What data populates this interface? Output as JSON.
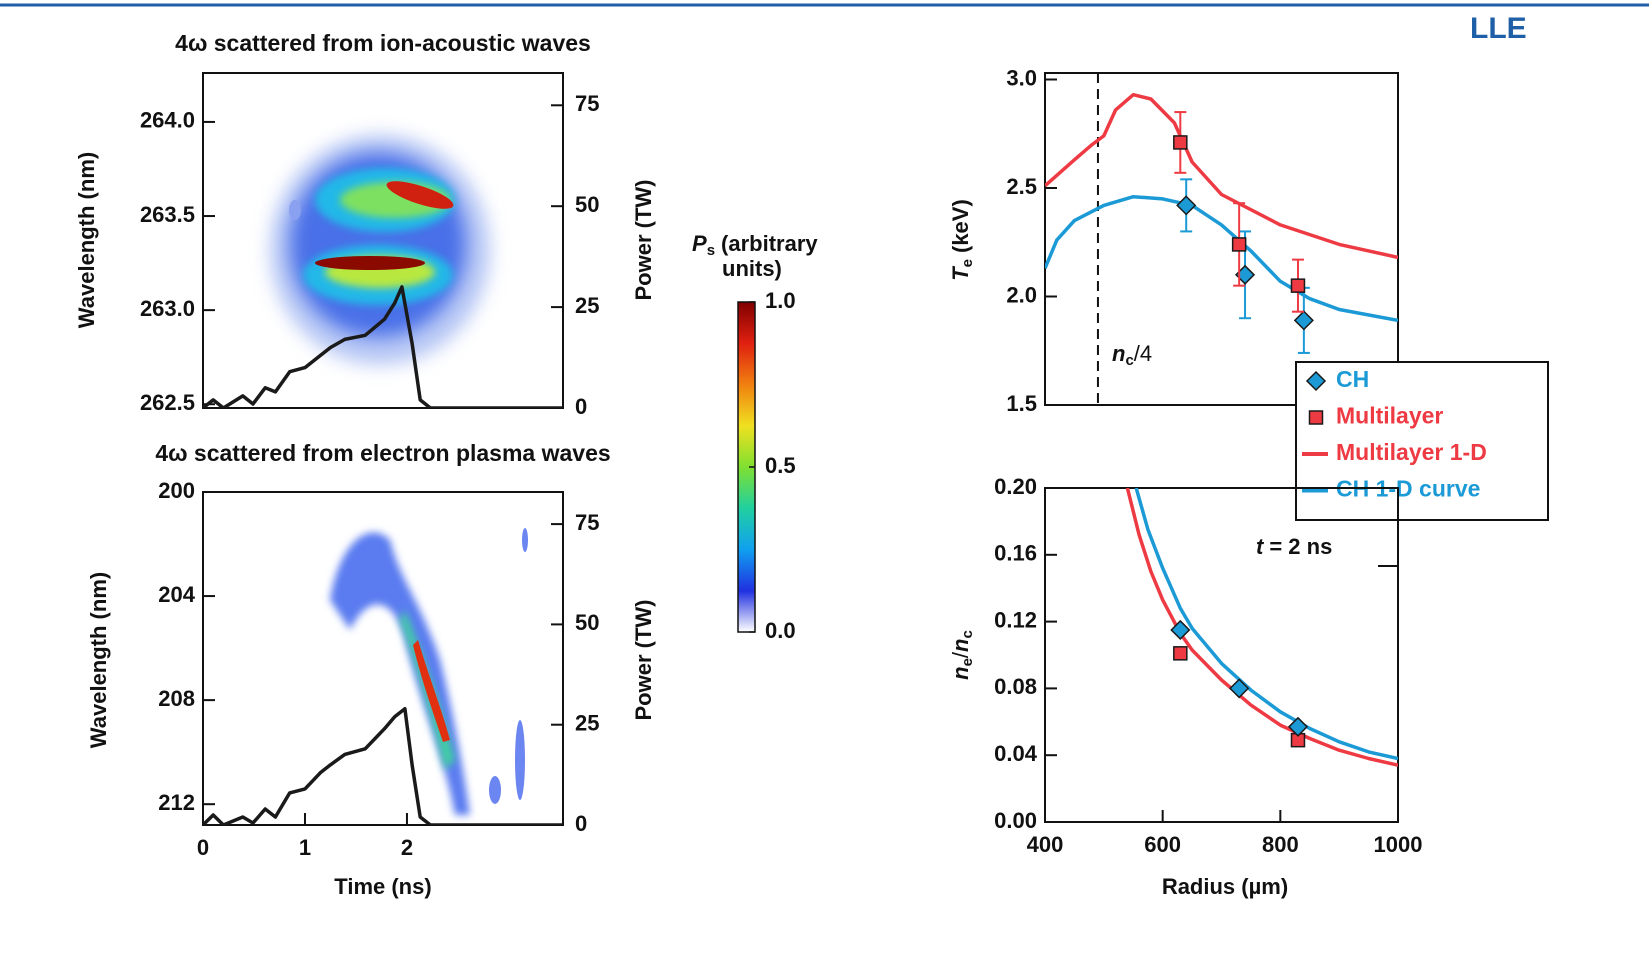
{
  "header": {
    "logo": "LLE"
  },
  "chart_data": [
    {
      "type": "heatmap",
      "title": "4ω scattered from ion-acoustic waves",
      "ylabel": "Wavelength (nm)",
      "y2label": "Power (TW)",
      "xlim": [
        0,
        3.53
      ],
      "ylim": [
        262.48,
        264.26
      ],
      "yticks": [
        {
          "value": 262.5,
          "label": "262.5"
        },
        {
          "value": 263,
          "label": "263.0"
        },
        {
          "value": 263.5,
          "label": "263.5"
        },
        {
          "value": 264,
          "label": "264.0"
        }
      ],
      "y2lim": [
        0,
        83
      ],
      "y2ticks": [
        0,
        25,
        50,
        75
      ],
      "series": [
        {
          "color": "#1a1a1a",
          "axis": "y2",
          "x": [
            0,
            0.1,
            0.2,
            0.39,
            0.49,
            0.61,
            0.71,
            0.85,
            1.0,
            1.15,
            1.25,
            1.39,
            1.59,
            1.78,
            1.88,
            1.95,
            2.05,
            2.13,
            2.23,
            3.53
          ],
          "values": [
            0,
            2,
            0,
            3,
            1,
            5,
            4,
            9,
            10,
            13,
            15,
            17,
            18,
            22,
            26,
            30,
            16,
            2,
            0,
            0
          ]
        }
      ]
    },
    {
      "type": "heatmap",
      "title": "4ω scattered from electron plasma waves",
      "ylabel": "Wavelength (nm)",
      "y2label": "Power (TW)",
      "xlabel": "Time (ns)",
      "xlim": [
        0,
        3.53
      ],
      "xticks": [
        0,
        1,
        2
      ],
      "ylim": [
        200,
        212.8
      ],
      "y_inverted": true,
      "yticks": [
        200,
        204,
        208,
        212
      ],
      "y2lim": [
        0,
        83
      ],
      "y2ticks": [
        0,
        25,
        50,
        75
      ],
      "series": [
        {
          "color": "#1a1a1a",
          "axis": "y2",
          "x": [
            0,
            0.1,
            0.2,
            0.39,
            0.49,
            0.61,
            0.71,
            0.85,
            1.0,
            1.15,
            1.25,
            1.39,
            1.59,
            1.78,
            1.88,
            1.98,
            2.05,
            2.13,
            2.23,
            3.53
          ],
          "values": [
            0,
            2.5,
            0,
            2,
            0.5,
            4,
            2,
            8,
            9,
            13,
            15,
            17.6,
            19,
            24,
            27,
            29,
            15,
            2,
            0,
            0
          ]
        }
      ]
    },
    {
      "type": "colorbar",
      "title": [
        "P",
        "s",
        "(arbitrary",
        "units)"
      ],
      "ylim": [
        0,
        1
      ],
      "yticks": [
        {
          "value": 0,
          "label": "0.0"
        },
        {
          "value": 0.5,
          "label": "0.5"
        },
        {
          "value": 1,
          "label": "1.0"
        }
      ],
      "colors": [
        "#ffffff",
        "#2030e0",
        "#10a0f0",
        "#20d0a0",
        "#80e030",
        "#f0e020",
        "#f08010",
        "#e02010",
        "#800000"
      ]
    },
    {
      "type": "line",
      "ylabel": [
        "T",
        "e",
        "(keV)"
      ],
      "xlim": [
        400,
        1000
      ],
      "ylim": [
        1.5,
        3.03
      ],
      "yticks": [
        1.5,
        {
          "value": 2,
          "label": "2.0"
        },
        2.5,
        {
          "value": 3,
          "label": "3.0"
        }
      ],
      "vline": 490,
      "annotation": [
        "n",
        "c",
        "/4"
      ],
      "legend": "right",
      "series": [
        {
          "name": "CH",
          "color": "#1b9ad6",
          "marker": "diamond",
          "x": [
            640,
            740,
            840
          ],
          "values": [
            2.42,
            2.1,
            1.89
          ],
          "errors": [
            0.12,
            0.2,
            0.15
          ]
        },
        {
          "name": "Multilayer",
          "color": "#ee3a43",
          "marker": "square",
          "x": [
            630,
            730,
            830
          ],
          "values": [
            2.71,
            2.24,
            2.05
          ],
          "errors": [
            0.14,
            0.19,
            0.12
          ]
        },
        {
          "name": "Multilayer 1-D",
          "color": "#ee3a43",
          "x": [
            400,
            450,
            480,
            500,
            520,
            550,
            580,
            620,
            650,
            700,
            800,
            900,
            1000
          ],
          "values": [
            2.51,
            2.63,
            2.7,
            2.74,
            2.86,
            2.93,
            2.91,
            2.8,
            2.62,
            2.47,
            2.33,
            2.24,
            2.18
          ]
        },
        {
          "name": "CH 1-D curve",
          "color": "#1b9ad6",
          "x": [
            400,
            420,
            450,
            500,
            550,
            600,
            650,
            700,
            750,
            800,
            850,
            900,
            1000
          ],
          "values": [
            2.13,
            2.26,
            2.35,
            2.42,
            2.46,
            2.45,
            2.42,
            2.33,
            2.21,
            2.07,
            1.99,
            1.94,
            1.89
          ]
        }
      ]
    },
    {
      "type": "line",
      "ylabel": [
        "n",
        "e",
        "/",
        "n",
        "c"
      ],
      "xlabel": "Radius (µm)",
      "xlim": [
        400,
        1000
      ],
      "xticks": [
        400,
        600,
        800,
        1000
      ],
      "ylim": [
        0,
        0.2
      ],
      "yticks": [
        {
          "value": 0,
          "label": "0.00"
        },
        {
          "value": 0.04,
          "label": "0.04"
        },
        {
          "value": 0.08,
          "label": "0.08"
        },
        {
          "value": 0.12,
          "label": "0.12"
        },
        {
          "value": 0.16,
          "label": "0.16"
        },
        {
          "value": 0.2,
          "label": "0.20"
        }
      ],
      "annotation": [
        "t",
        "= 2 ns"
      ],
      "series": [
        {
          "color": "#ee3a43",
          "x": [
            540,
            560,
            580,
            600,
            630,
            650,
            700,
            750,
            800,
            850,
            900,
            950,
            1000
          ],
          "values": [
            0.2,
            0.172,
            0.15,
            0.133,
            0.113,
            0.103,
            0.085,
            0.07,
            0.058,
            0.05,
            0.043,
            0.038,
            0.034
          ]
        },
        {
          "color": "#1b9ad6",
          "x": [
            555,
            575,
            600,
            630,
            650,
            700,
            750,
            800,
            850,
            900,
            950,
            1000
          ],
          "values": [
            0.2,
            0.175,
            0.152,
            0.128,
            0.116,
            0.095,
            0.079,
            0.066,
            0.056,
            0.048,
            0.042,
            0.038
          ]
        },
        {
          "color": "#ee3a43",
          "marker": "square",
          "x": [
            630,
            830
          ],
          "values": [
            0.101,
            0.049
          ]
        },
        {
          "color": "#1b9ad6",
          "marker": "diamond",
          "x": [
            630,
            730,
            830
          ],
          "values": [
            0.115,
            0.08,
            0.057
          ]
        }
      ]
    }
  ]
}
